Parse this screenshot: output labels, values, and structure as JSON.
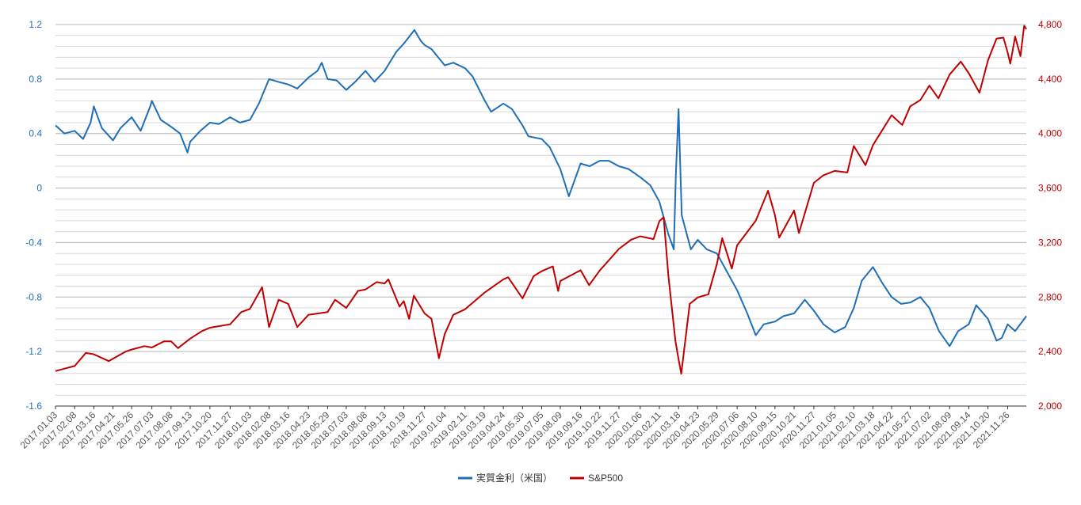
{
  "chart_data": {
    "type": "line",
    "title": "",
    "xlabel": "",
    "ylabel_left": "",
    "ylabel_right": "",
    "x_start": "2017.01.03",
    "x_end": "2021.12.31",
    "x_tick_labels": [
      "2017.01.03",
      "2017.02.08",
      "2017.03.16",
      "2017.04.21",
      "2017.05.26",
      "2017.07.03",
      "2017.08.08",
      "2017.09.13",
      "2017.10.20",
      "2017.11.27",
      "2018.01.03",
      "2018.02.08",
      "2018.03.16",
      "2018.04.23",
      "2018.05.29",
      "2018.07.03",
      "2018.08.08",
      "2018.09.13",
      "2018.10.19",
      "2018.11.27",
      "2019.01.04",
      "2019.02.11",
      "2019.03.19",
      "2019.04.24",
      "2019.05.30",
      "2019.07.05",
      "2019.08.09",
      "2019.09.16",
      "2019.10.22",
      "2019.11.27",
      "2020.01.06",
      "2020.02.11",
      "2020.03.18",
      "2020.04.23",
      "2020.05.29",
      "2020.07.06",
      "2020.08.10",
      "2020.09.15",
      "2020.10.21",
      "2020.11.27",
      "2021.01.05",
      "2021.02.10",
      "2021.03.18",
      "2021.04.22",
      "2021.05.27",
      "2021.07.02",
      "2021.08.09",
      "2021.09.14",
      "2021.10.20",
      "2021.11.26"
    ],
    "y_left": {
      "min": -1.6,
      "max": 1.2,
      "ticks": [
        -1.6,
        -1.2,
        -0.8,
        -0.4,
        0,
        0.4,
        0.8,
        1.2
      ],
      "tick_labels": [
        "-1.6",
        "-1.2",
        "-0.8",
        "-0.4",
        "0",
        "0.4",
        "0.8",
        "1.2"
      ],
      "minor_step": 0.08
    },
    "y_right": {
      "min": 2000,
      "max": 4800,
      "ticks": [
        2000,
        2400,
        2800,
        3200,
        3600,
        4000,
        4400,
        4800
      ],
      "tick_labels": [
        "2,000",
        "2,400",
        "2,800",
        "3,200",
        "3,600",
        "4,000",
        "4,400",
        "4,800"
      ]
    },
    "grid": true,
    "legend_position": "bottom",
    "series": [
      {
        "name": "実質金利（米国）",
        "axis": "left",
        "color": "#1f6fb8",
        "points": [
          [
            "2017.01.03",
            0.46
          ],
          [
            "2017.01.20",
            0.4
          ],
          [
            "2017.02.08",
            0.42
          ],
          [
            "2017.02.24",
            0.36
          ],
          [
            "2017.03.10",
            0.48
          ],
          [
            "2017.03.16",
            0.6
          ],
          [
            "2017.03.31",
            0.44
          ],
          [
            "2017.04.21",
            0.35
          ],
          [
            "2017.05.05",
            0.44
          ],
          [
            "2017.05.26",
            0.52
          ],
          [
            "2017.06.12",
            0.42
          ],
          [
            "2017.06.30",
            0.6
          ],
          [
            "2017.07.03",
            0.64
          ],
          [
            "2017.07.20",
            0.5
          ],
          [
            "2017.08.08",
            0.45
          ],
          [
            "2017.08.25",
            0.4
          ],
          [
            "2017.09.08",
            0.26
          ],
          [
            "2017.09.13",
            0.34
          ],
          [
            "2017.10.02",
            0.42
          ],
          [
            "2017.10.20",
            0.48
          ],
          [
            "2017.11.06",
            0.47
          ],
          [
            "2017.11.27",
            0.52
          ],
          [
            "2017.12.15",
            0.48
          ],
          [
            "2018.01.03",
            0.5
          ],
          [
            "2018.01.20",
            0.62
          ],
          [
            "2018.02.08",
            0.8
          ],
          [
            "2018.02.25",
            0.78
          ],
          [
            "2018.03.16",
            0.76
          ],
          [
            "2018.04.02",
            0.73
          ],
          [
            "2018.04.23",
            0.81
          ],
          [
            "2018.05.10",
            0.86
          ],
          [
            "2018.05.18",
            0.92
          ],
          [
            "2018.05.29",
            0.8
          ],
          [
            "2018.06.15",
            0.79
          ],
          [
            "2018.07.03",
            0.72
          ],
          [
            "2018.07.20",
            0.78
          ],
          [
            "2018.08.08",
            0.86
          ],
          [
            "2018.08.25",
            0.78
          ],
          [
            "2018.09.13",
            0.86
          ],
          [
            "2018.10.05",
            1.0
          ],
          [
            "2018.10.19",
            1.06
          ],
          [
            "2018.11.08",
            1.16
          ],
          [
            "2018.11.20",
            1.08
          ],
          [
            "2018.11.27",
            1.05
          ],
          [
            "2018.12.10",
            1.02
          ],
          [
            "2019.01.04",
            0.9
          ],
          [
            "2019.01.20",
            0.92
          ],
          [
            "2019.02.11",
            0.88
          ],
          [
            "2019.02.25",
            0.82
          ],
          [
            "2019.03.19",
            0.65
          ],
          [
            "2019.04.01",
            0.56
          ],
          [
            "2019.04.24",
            0.62
          ],
          [
            "2019.05.10",
            0.58
          ],
          [
            "2019.05.30",
            0.46
          ],
          [
            "2019.06.10",
            0.38
          ],
          [
            "2019.07.05",
            0.36
          ],
          [
            "2019.07.20",
            0.3
          ],
          [
            "2019.08.09",
            0.14
          ],
          [
            "2019.08.25",
            -0.06
          ],
          [
            "2019.09.16",
            0.18
          ],
          [
            "2019.10.03",
            0.16
          ],
          [
            "2019.10.22",
            0.2
          ],
          [
            "2019.11.08",
            0.2
          ],
          [
            "2019.11.27",
            0.16
          ],
          [
            "2019.12.15",
            0.14
          ],
          [
            "2020.01.06",
            0.08
          ],
          [
            "2020.01.25",
            0.02
          ],
          [
            "2020.02.11",
            -0.1
          ],
          [
            "2020.02.28",
            -0.34
          ],
          [
            "2020.03.09",
            -0.45
          ],
          [
            "2020.03.13",
            0.1
          ],
          [
            "2020.03.18",
            0.58
          ],
          [
            "2020.03.24",
            -0.2
          ],
          [
            "2020.04.10",
            -0.45
          ],
          [
            "2020.04.23",
            -0.38
          ],
          [
            "2020.05.10",
            -0.45
          ],
          [
            "2020.05.29",
            -0.48
          ],
          [
            "2020.06.15",
            -0.6
          ],
          [
            "2020.07.06",
            -0.75
          ],
          [
            "2020.07.25",
            -0.92
          ],
          [
            "2020.08.10",
            -1.08
          ],
          [
            "2020.08.25",
            -1.0
          ],
          [
            "2020.09.15",
            -0.98
          ],
          [
            "2020.10.01",
            -0.94
          ],
          [
            "2020.10.21",
            -0.92
          ],
          [
            "2020.11.10",
            -0.82
          ],
          [
            "2020.11.27",
            -0.9
          ],
          [
            "2020.12.15",
            -1.0
          ],
          [
            "2021.01.05",
            -1.06
          ],
          [
            "2021.01.25",
            -1.02
          ],
          [
            "2021.02.10",
            -0.88
          ],
          [
            "2021.02.25",
            -0.68
          ],
          [
            "2021.03.18",
            -0.58
          ],
          [
            "2021.04.05",
            -0.7
          ],
          [
            "2021.04.22",
            -0.8
          ],
          [
            "2021.05.10",
            -0.85
          ],
          [
            "2021.05.27",
            -0.84
          ],
          [
            "2021.06.15",
            -0.8
          ],
          [
            "2021.07.02",
            -0.88
          ],
          [
            "2021.07.20",
            -1.05
          ],
          [
            "2021.08.09",
            -1.16
          ],
          [
            "2021.08.25",
            -1.05
          ],
          [
            "2021.09.14",
            -1.0
          ],
          [
            "2021.09.28",
            -0.86
          ],
          [
            "2021.10.20",
            -0.96
          ],
          [
            "2021.11.05",
            -1.12
          ],
          [
            "2021.11.15",
            -1.1
          ],
          [
            "2021.11.26",
            -1.0
          ],
          [
            "2021.12.10",
            -1.05
          ],
          [
            "2021.12.31",
            -0.94
          ]
        ]
      },
      {
        "name": "S&P500",
        "axis": "right",
        "color": "#c00000",
        "points": [
          [
            "2017.01.03",
            2257
          ],
          [
            "2017.01.25",
            2280
          ],
          [
            "2017.02.08",
            2294
          ],
          [
            "2017.03.01",
            2390
          ],
          [
            "2017.03.16",
            2380
          ],
          [
            "2017.04.13",
            2330
          ],
          [
            "2017.04.21",
            2348
          ],
          [
            "2017.05.15",
            2400
          ],
          [
            "2017.05.26",
            2415
          ],
          [
            "2017.06.19",
            2440
          ],
          [
            "2017.07.03",
            2430
          ],
          [
            "2017.07.26",
            2475
          ],
          [
            "2017.08.08",
            2475
          ],
          [
            "2017.08.21",
            2425
          ],
          [
            "2017.09.13",
            2495
          ],
          [
            "2017.10.05",
            2550
          ],
          [
            "2017.10.20",
            2575
          ],
          [
            "2017.11.27",
            2600
          ],
          [
            "2017.12.18",
            2690
          ],
          [
            "2018.01.03",
            2713
          ],
          [
            "2018.01.26",
            2872
          ],
          [
            "2018.02.08",
            2580
          ],
          [
            "2018.02.26",
            2780
          ],
          [
            "2018.03.16",
            2750
          ],
          [
            "2018.04.02",
            2580
          ],
          [
            "2018.04.23",
            2670
          ],
          [
            "2018.05.29",
            2690
          ],
          [
            "2018.06.12",
            2780
          ],
          [
            "2018.07.03",
            2720
          ],
          [
            "2018.07.25",
            2845
          ],
          [
            "2018.08.08",
            2855
          ],
          [
            "2018.08.29",
            2910
          ],
          [
            "2018.09.13",
            2900
          ],
          [
            "2018.09.20",
            2930
          ],
          [
            "2018.10.11",
            2730
          ],
          [
            "2018.10.19",
            2770
          ],
          [
            "2018.10.29",
            2640
          ],
          [
            "2018.11.07",
            2810
          ],
          [
            "2018.11.27",
            2680
          ],
          [
            "2018.12.10",
            2640
          ],
          [
            "2018.12.24",
            2351
          ],
          [
            "2019.01.04",
            2530
          ],
          [
            "2019.01.20",
            2670
          ],
          [
            "2019.02.11",
            2710
          ],
          [
            "2019.03.19",
            2830
          ],
          [
            "2019.04.24",
            2930
          ],
          [
            "2019.05.03",
            2945
          ],
          [
            "2019.05.30",
            2790
          ],
          [
            "2019.06.20",
            2954
          ],
          [
            "2019.07.05",
            2990
          ],
          [
            "2019.07.26",
            3025
          ],
          [
            "2019.08.05",
            2844
          ],
          [
            "2019.08.09",
            2918
          ],
          [
            "2019.09.16",
            2997
          ],
          [
            "2019.10.02",
            2887
          ],
          [
            "2019.10.22",
            2995
          ],
          [
            "2019.11.27",
            3153
          ],
          [
            "2019.12.20",
            3221
          ],
          [
            "2020.01.06",
            3246
          ],
          [
            "2020.01.31",
            3225
          ],
          [
            "2020.02.11",
            3357
          ],
          [
            "2020.02.19",
            3386
          ],
          [
            "2020.02.28",
            2954
          ],
          [
            "2020.03.12",
            2480
          ],
          [
            "2020.03.16",
            2386
          ],
          [
            "2020.03.23",
            2237
          ],
          [
            "2020.04.08",
            2750
          ],
          [
            "2020.04.23",
            2797
          ],
          [
            "2020.05.13",
            2820
          ],
          [
            "2020.05.29",
            3044
          ],
          [
            "2020.06.08",
            3232
          ],
          [
            "2020.06.26",
            3009
          ],
          [
            "2020.07.06",
            3179
          ],
          [
            "2020.08.10",
            3360
          ],
          [
            "2020.09.02",
            3580
          ],
          [
            "2020.09.15",
            3401
          ],
          [
            "2020.09.23",
            3237
          ],
          [
            "2020.10.21",
            3435
          ],
          [
            "2020.10.30",
            3270
          ],
          [
            "2020.11.27",
            3638
          ],
          [
            "2020.12.15",
            3694
          ],
          [
            "2021.01.05",
            3726
          ],
          [
            "2021.01.29",
            3714
          ],
          [
            "2021.02.10",
            3909
          ],
          [
            "2021.03.04",
            3768
          ],
          [
            "2021.03.18",
            3915
          ],
          [
            "2021.04.22",
            4135
          ],
          [
            "2021.05.12",
            4063
          ],
          [
            "2021.05.27",
            4200
          ],
          [
            "2021.06.15",
            4246
          ],
          [
            "2021.07.02",
            4352
          ],
          [
            "2021.07.19",
            4258
          ],
          [
            "2021.08.09",
            4433
          ],
          [
            "2021.08.30",
            4528
          ],
          [
            "2021.09.14",
            4443
          ],
          [
            "2021.10.04",
            4300
          ],
          [
            "2021.10.20",
            4536
          ],
          [
            "2021.11.05",
            4697
          ],
          [
            "2021.11.18",
            4704
          ],
          [
            "2021.11.26",
            4594
          ],
          [
            "2021.12.01",
            4513
          ],
          [
            "2021.12.10",
            4712
          ],
          [
            "2021.12.20",
            4568
          ],
          [
            "2021.12.27",
            4791
          ],
          [
            "2021.12.31",
            4766
          ]
        ]
      }
    ]
  }
}
